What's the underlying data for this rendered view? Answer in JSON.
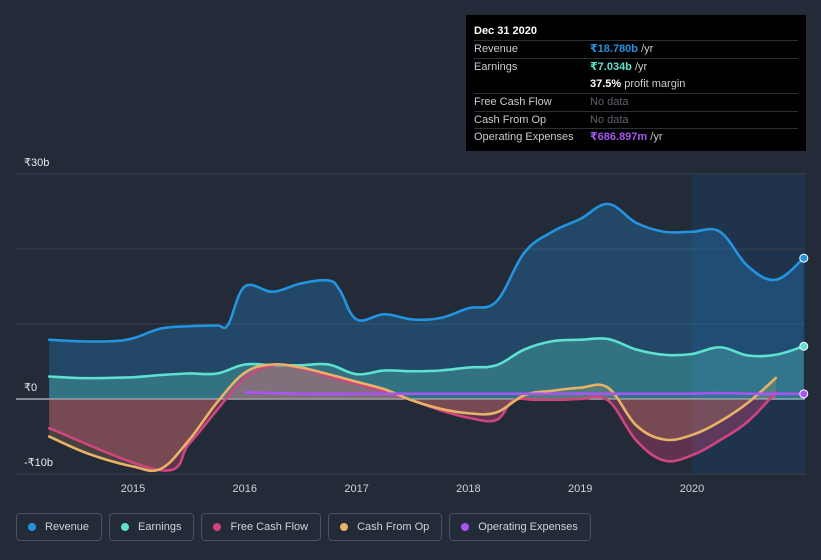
{
  "tooltip": {
    "date": "Dec 31 2020",
    "rows": [
      {
        "label": "Revenue",
        "value": "₹18.780b",
        "unit": " /yr",
        "color": "#2394df"
      },
      {
        "label": "Earnings",
        "value": "₹7.034b",
        "unit": " /yr",
        "color": "#5ee1cf"
      },
      {
        "label": "",
        "value": "37.5%",
        "unit": " profit margin",
        "color": "#ffffff"
      },
      {
        "label": "Free Cash Flow",
        "value": "No data",
        "unit": "",
        "color": "#5e6370"
      },
      {
        "label": "Cash From Op",
        "value": "No data",
        "unit": "",
        "color": "#5e6370"
      },
      {
        "label": "Operating Expenses",
        "value": "₹686.897m",
        "unit": " /yr",
        "color": "#a855f7"
      }
    ]
  },
  "legend": [
    {
      "label": "Revenue",
      "color": "#2394df"
    },
    {
      "label": "Earnings",
      "color": "#5ee1cf"
    },
    {
      "label": "Free Cash Flow",
      "color": "#d0457f"
    },
    {
      "label": "Cash From Op",
      "color": "#e8b366"
    },
    {
      "label": "Operating Expenses",
      "color": "#a855f7"
    }
  ],
  "chart_data": {
    "type": "line",
    "title": "",
    "y_axis_labels": [
      "₹30b",
      "₹0",
      "-₹10b"
    ],
    "ylim": [
      -10,
      30
    ],
    "xlim": [
      2014.25,
      2021.0
    ],
    "x_ticks": [
      2015,
      2016,
      2017,
      2018,
      2019,
      2020
    ],
    "x_tick_labels": [
      "2015",
      "2016",
      "2017",
      "2018",
      "2019",
      "2020"
    ],
    "forecast_start": 2020.0,
    "series": [
      {
        "name": "Revenue",
        "color": "#2394df",
        "x": [
          2014.25,
          2014.5,
          2014.8,
          2015.0,
          2015.25,
          2015.5,
          2015.75,
          2015.85,
          2016.0,
          2016.25,
          2016.5,
          2016.75,
          2016.85,
          2017.0,
          2017.25,
          2017.5,
          2017.75,
          2018.0,
          2018.25,
          2018.5,
          2018.75,
          2019.0,
          2019.25,
          2019.5,
          2019.75,
          2020.0,
          2020.25,
          2020.5,
          2020.75,
          2021.0
        ],
        "values": [
          7.9,
          7.7,
          7.7,
          8.1,
          9.4,
          9.7,
          9.8,
          9.9,
          15.0,
          14.3,
          15.4,
          15.8,
          14.5,
          10.6,
          11.3,
          10.6,
          10.8,
          12.1,
          13.0,
          19.5,
          22.3,
          24.0,
          26.0,
          23.5,
          22.3,
          22.3,
          22.3,
          17.7,
          15.9,
          18.78
        ]
      },
      {
        "name": "Earnings",
        "color": "#5ee1cf",
        "x": [
          2014.25,
          2014.5,
          2014.75,
          2015.0,
          2015.25,
          2015.5,
          2015.75,
          2016.0,
          2016.25,
          2016.5,
          2016.75,
          2017.0,
          2017.25,
          2017.5,
          2017.75,
          2018.0,
          2018.25,
          2018.5,
          2018.75,
          2019.0,
          2019.25,
          2019.5,
          2019.75,
          2020.0,
          2020.25,
          2020.5,
          2020.75,
          2021.0
        ],
        "values": [
          3.0,
          2.8,
          2.8,
          2.9,
          3.2,
          3.4,
          3.4,
          4.6,
          4.5,
          4.5,
          4.6,
          3.3,
          3.8,
          3.7,
          3.8,
          4.2,
          4.5,
          6.6,
          7.7,
          7.9,
          8.0,
          6.6,
          5.9,
          6.0,
          6.9,
          5.8,
          5.9,
          7.034
        ]
      },
      {
        "name": "Free Cash Flow",
        "color": "#d0457f",
        "x": [
          2014.25,
          2015.25,
          2015.5,
          2015.75,
          2016.0,
          2016.25,
          2016.5,
          2016.75,
          2017.0,
          2017.25,
          2017.5,
          2017.75,
          2018.0,
          2018.25,
          2018.4,
          2018.6,
          2018.85,
          2019.0,
          2019.25,
          2019.5,
          2019.75,
          2020.0,
          2020.25,
          2020.5,
          2020.75
        ],
        "values": [
          -3.9,
          -9.5,
          -6.0,
          -1.5,
          2.8,
          4.5,
          4.1,
          3.0,
          2.0,
          1.0,
          -0.2,
          -1.5,
          -2.5,
          -2.8,
          -0.2,
          -0.1,
          -0.1,
          0.0,
          -0.2,
          -5.5,
          -8.2,
          -7.5,
          -5.5,
          -3.0,
          0.9
        ]
      },
      {
        "name": "Cash From Op",
        "color": "#e8b366",
        "x": [
          2014.25,
          2014.6,
          2015.0,
          2015.25,
          2015.5,
          2015.75,
          2016.0,
          2016.25,
          2016.5,
          2016.75,
          2017.0,
          2017.25,
          2017.5,
          2017.75,
          2018.0,
          2018.25,
          2018.5,
          2018.75,
          2019.0,
          2019.25,
          2019.5,
          2019.75,
          2020.0,
          2020.25,
          2020.5,
          2020.75
        ],
        "values": [
          -5.0,
          -7.3,
          -9.0,
          -9.3,
          -5.5,
          -0.5,
          3.5,
          4.6,
          4.2,
          3.3,
          2.3,
          1.3,
          -0.2,
          -1.3,
          -1.9,
          -1.8,
          0.5,
          1.1,
          1.5,
          1.5,
          -3.5,
          -5.4,
          -4.8,
          -3.0,
          -0.5,
          2.8
        ]
      },
      {
        "name": "Operating Expenses",
        "color": "#a855f7",
        "x": [
          2016.0,
          2016.5,
          2017.0,
          2017.5,
          2018.0,
          2018.5,
          2019.0,
          2019.5,
          2020.0,
          2020.25,
          2020.5,
          2021.0
        ],
        "values": [
          0.9,
          0.7,
          0.7,
          0.7,
          0.7,
          0.7,
          0.7,
          0.7,
          0.7,
          0.8,
          0.7,
          0.686897
        ]
      }
    ]
  }
}
